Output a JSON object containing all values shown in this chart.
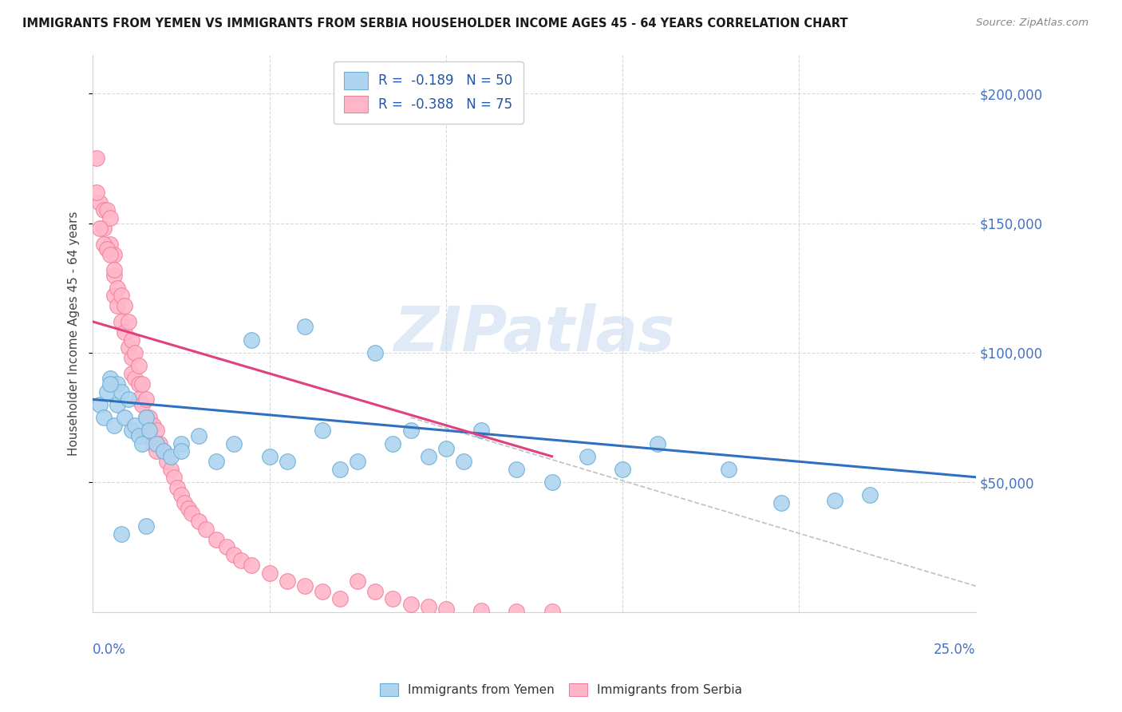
{
  "title": "IMMIGRANTS FROM YEMEN VS IMMIGRANTS FROM SERBIA HOUSEHOLDER INCOME AGES 45 - 64 YEARS CORRELATION CHART",
  "source": "Source: ZipAtlas.com",
  "ylabel": "Householder Income Ages 45 - 64 years",
  "watermark": "ZIPatlas",
  "xlim": [
    0.0,
    0.25
  ],
  "ylim": [
    0,
    215000
  ],
  "yticks": [
    50000,
    100000,
    150000,
    200000
  ],
  "ytick_labels": [
    "$50,000",
    "$100,000",
    "$150,000",
    "$200,000"
  ],
  "blue_fill": "#aed4f0",
  "blue_edge": "#6baed6",
  "pink_fill": "#ffb6c8",
  "pink_edge": "#f080a0",
  "blue_line": "#3070c0",
  "pink_line": "#e04080",
  "legend_labels": [
    "R =  -0.189   N = 50",
    "R =  -0.388   N = 75"
  ],
  "bottom_labels": [
    "Immigrants from Yemen",
    "Immigrants from Serbia"
  ],
  "yemen_x": [
    0.002,
    0.003,
    0.004,
    0.005,
    0.006,
    0.007,
    0.007,
    0.008,
    0.009,
    0.01,
    0.011,
    0.012,
    0.013,
    0.014,
    0.015,
    0.016,
    0.018,
    0.02,
    0.022,
    0.025,
    0.03,
    0.035,
    0.04,
    0.05,
    0.055,
    0.065,
    0.07,
    0.075,
    0.085,
    0.09,
    0.1,
    0.105,
    0.11,
    0.12,
    0.13,
    0.14,
    0.15,
    0.16,
    0.18,
    0.195,
    0.21,
    0.22,
    0.045,
    0.06,
    0.08,
    0.095,
    0.025,
    0.015,
    0.008,
    0.005
  ],
  "yemen_y": [
    80000,
    75000,
    85000,
    90000,
    72000,
    88000,
    80000,
    85000,
    75000,
    82000,
    70000,
    72000,
    68000,
    65000,
    75000,
    70000,
    65000,
    62000,
    60000,
    65000,
    68000,
    58000,
    65000,
    60000,
    58000,
    70000,
    55000,
    58000,
    65000,
    70000,
    63000,
    58000,
    70000,
    55000,
    50000,
    60000,
    55000,
    65000,
    55000,
    42000,
    43000,
    45000,
    105000,
    110000,
    100000,
    60000,
    62000,
    33000,
    30000,
    88000
  ],
  "serbia_x": [
    0.001,
    0.002,
    0.003,
    0.003,
    0.004,
    0.004,
    0.005,
    0.005,
    0.006,
    0.006,
    0.006,
    0.007,
    0.007,
    0.008,
    0.008,
    0.009,
    0.009,
    0.01,
    0.01,
    0.011,
    0.011,
    0.011,
    0.012,
    0.012,
    0.013,
    0.013,
    0.013,
    0.014,
    0.014,
    0.015,
    0.015,
    0.015,
    0.016,
    0.016,
    0.017,
    0.017,
    0.018,
    0.018,
    0.019,
    0.02,
    0.021,
    0.022,
    0.023,
    0.024,
    0.025,
    0.026,
    0.027,
    0.028,
    0.03,
    0.032,
    0.035,
    0.038,
    0.04,
    0.042,
    0.045,
    0.05,
    0.055,
    0.06,
    0.065,
    0.07,
    0.075,
    0.08,
    0.085,
    0.09,
    0.095,
    0.1,
    0.11,
    0.12,
    0.13,
    0.001,
    0.002,
    0.003,
    0.004,
    0.005,
    0.006
  ],
  "serbia_y": [
    175000,
    158000,
    155000,
    148000,
    155000,
    140000,
    152000,
    142000,
    138000,
    130000,
    122000,
    125000,
    118000,
    122000,
    112000,
    118000,
    108000,
    112000,
    102000,
    105000,
    98000,
    92000,
    100000,
    90000,
    95000,
    88000,
    82000,
    88000,
    80000,
    82000,
    75000,
    68000,
    75000,
    68000,
    72000,
    65000,
    70000,
    62000,
    65000,
    62000,
    58000,
    55000,
    52000,
    48000,
    45000,
    42000,
    40000,
    38000,
    35000,
    32000,
    28000,
    25000,
    22000,
    20000,
    18000,
    15000,
    12000,
    10000,
    8000,
    5000,
    12000,
    8000,
    5000,
    3000,
    2000,
    1000,
    500,
    200,
    100,
    162000,
    148000,
    142000,
    140000,
    138000,
    132000
  ],
  "yemen_line_x": [
    0.0,
    0.25
  ],
  "yemen_line_y": [
    82000,
    52000
  ],
  "serbia_line_x": [
    0.0,
    0.13
  ],
  "serbia_line_y": [
    112000,
    60000
  ]
}
